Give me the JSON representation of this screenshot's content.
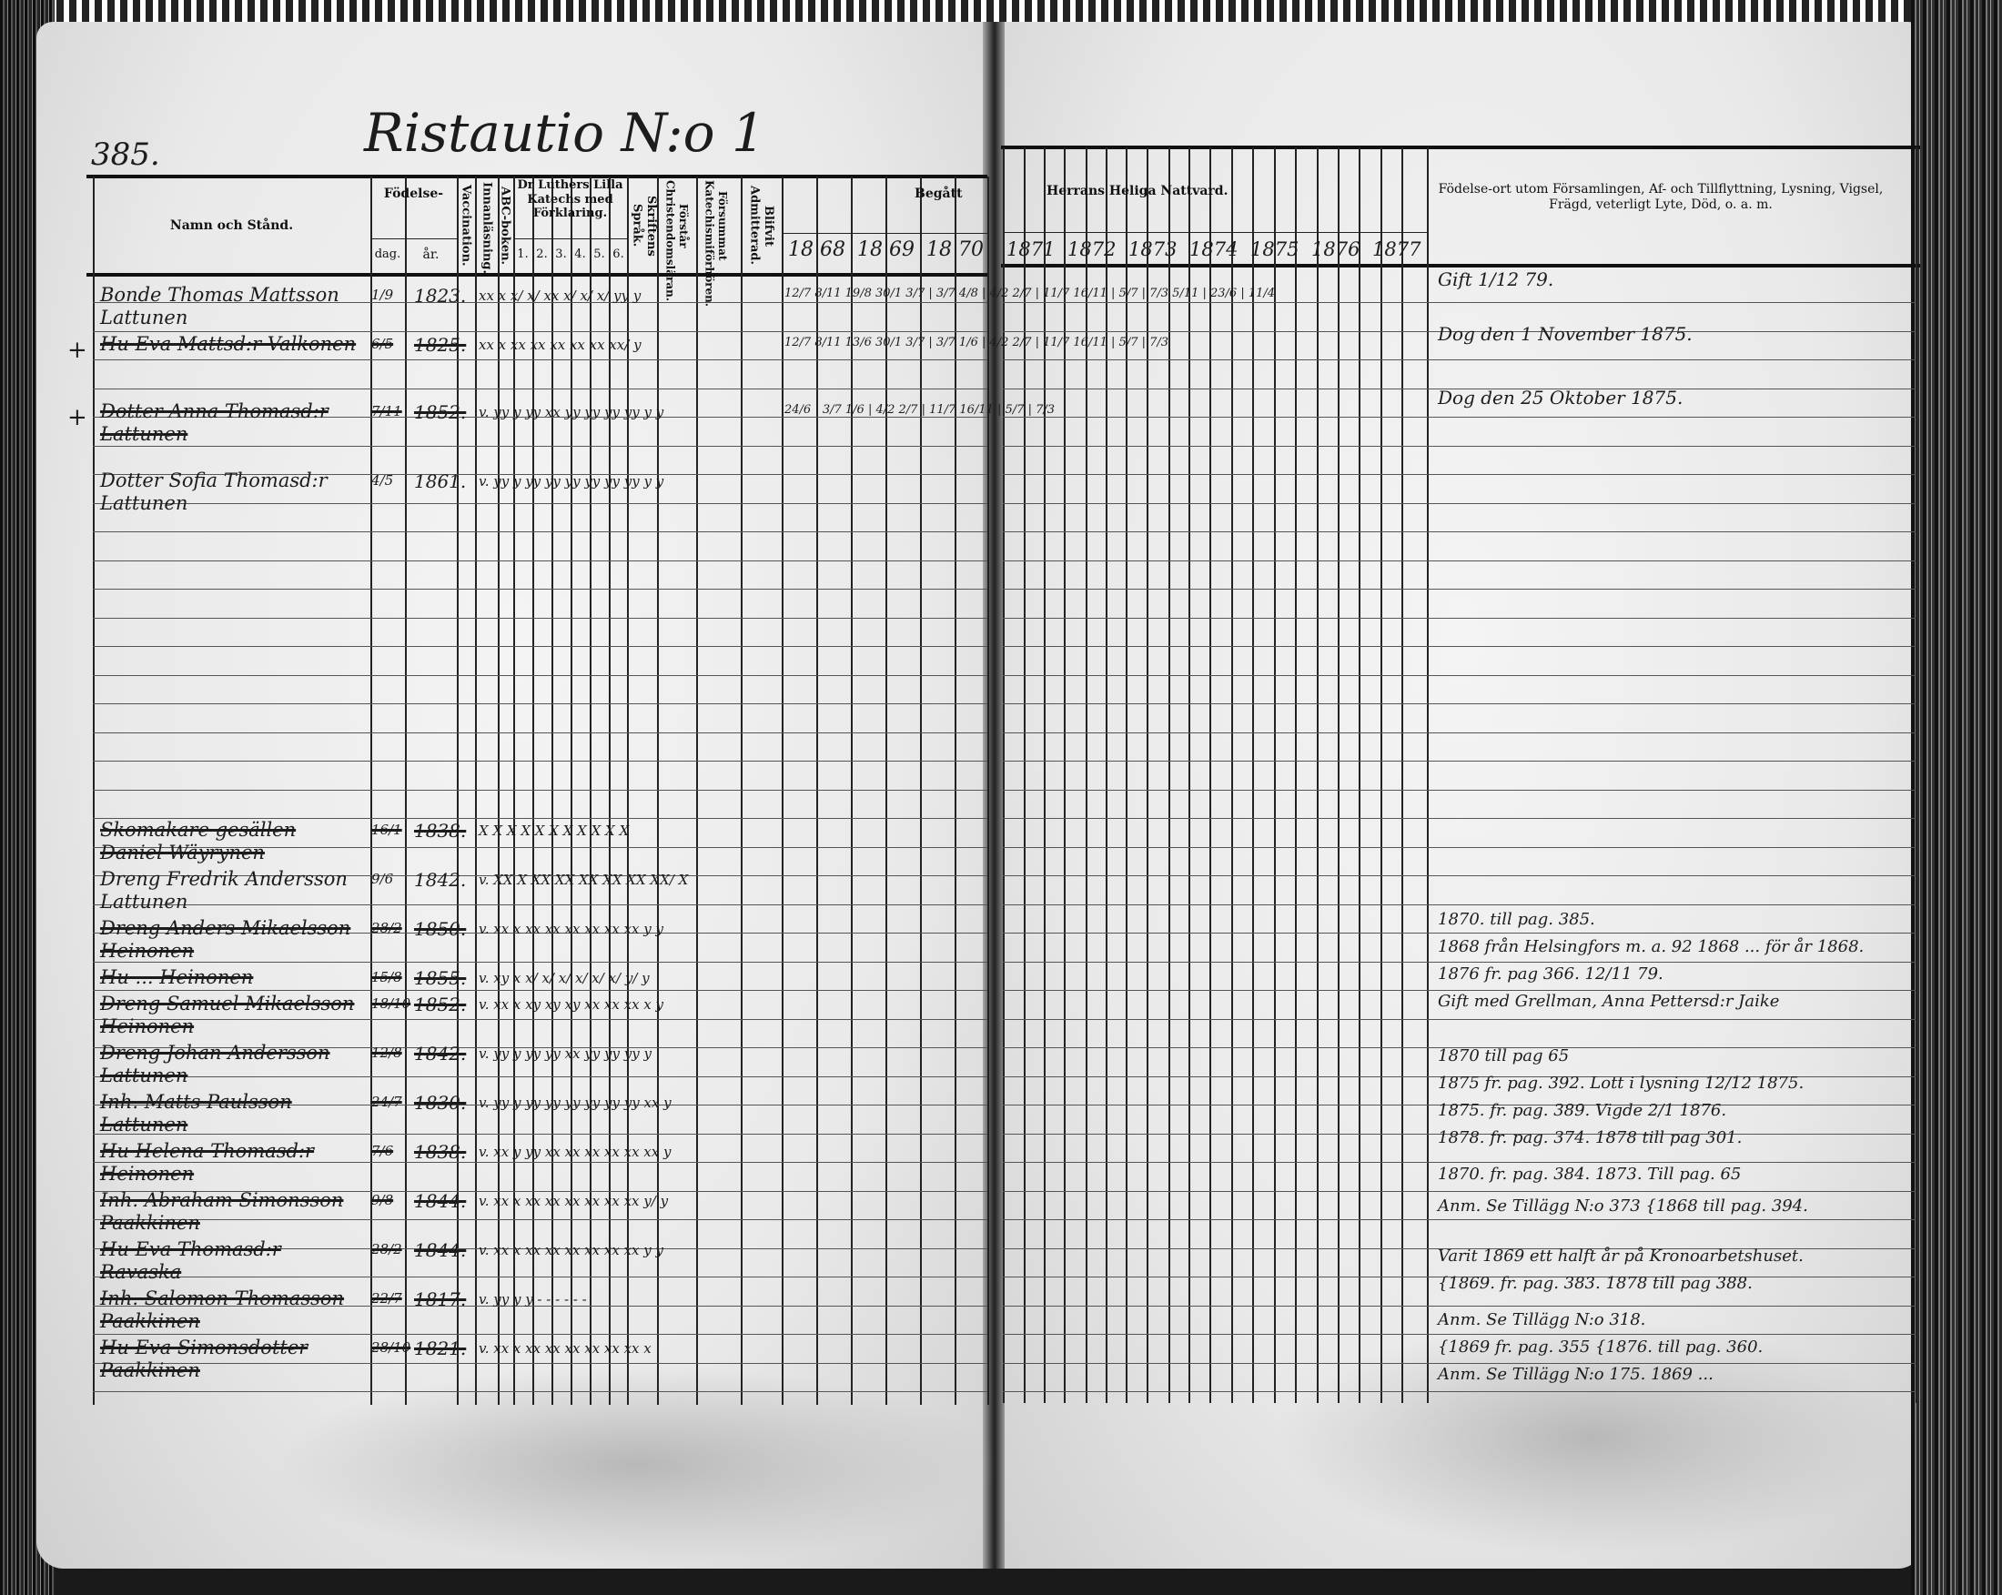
{
  "page_number": "385.",
  "title": "Ristautio N:o 1",
  "headers": {
    "name": "Namn och Stånd.",
    "birth": "Födelse-",
    "birth_day": "dag.",
    "birth_year": "år.",
    "vaccination": "Vaccination.",
    "reading": "Innanläsning.",
    "abc": "ABC-boken.",
    "catechism": "Dr Luthers Lilla Katechs med Förklaring.",
    "catechism_parts": [
      "1.",
      "2.",
      "3.",
      "4.",
      "5.",
      "6."
    ],
    "scripture": "Skriftens Språk.",
    "understands": "Förstår Christendomsläran.",
    "missed": "Försummat Katechismiförhören.",
    "admitted": "Blifvit Admitterad.",
    "communion_left": "Begått",
    "communion_right": "Herrans Heliga Nattvard.",
    "remarks": "Födelse-ort utom Församlingen, Af- och Tillflyttning, Lysning, Vigsel, Frägd, veterligt Lyte, Död, o. a. m.",
    "years_left": [
      "18 68",
      "18 69",
      "18 70"
    ],
    "years_right": [
      "1871",
      "1872",
      "1873",
      "1874",
      "1875",
      "1876",
      "1877"
    ]
  },
  "entries": [
    {
      "name": "Bonde Thomas Mattsson Lattunen",
      "day": "1/9",
      "year": "1823.",
      "marks": "xx x x/ x/ xx x/ x/ x/ yy  y",
      "struck": false,
      "cross": false
    },
    {
      "name": "Hu Eva Mattsd:r Valkonen",
      "day": "6/5",
      "year": "1825.",
      "marks": "xx x xx xx xx xx xx xx/  y",
      "struck": true,
      "cross": true
    },
    {
      "name": "Dotter Anna Thomasd:r Lattunen",
      "day": "7/11",
      "year": "1852.",
      "marks": "v. yy y yy xx yy yy yy yy y  y",
      "struck": true,
      "cross": true
    },
    {
      "name": "Dotter Sofia Thomasd:r Lattunen",
      "day": "4/5",
      "year": "1861.",
      "marks": "v. yy y yy yy yy yy yy yy y  y",
      "struck": false,
      "cross": false
    },
    {
      "name": "Skomakare gesällen Daniel Wäyrynen",
      "day": "16/1",
      "year": "1838.",
      "marks": "X X X X X X X X X X   X",
      "struck": true,
      "cross": false
    },
    {
      "name": "Dreng Fredrik Andersson Lattunen",
      "day": "9/6",
      "year": "1842.",
      "marks": "v. XX X XX XX XX XX XX XX/  X",
      "struck": false,
      "cross": false
    },
    {
      "name": "Dreng Anders Mikaelsson Heinonen",
      "day": "28/2",
      "year": "1850.",
      "marks": "v. xx x xx xx xx xx xx xx y  y",
      "struck": true,
      "cross": false
    },
    {
      "name": "Hu ... Heinonen",
      "day": "15/8",
      "year": "1855.",
      "marks": "v. xy x x/ x/ x/ x/ x/ x/ y/  y",
      "struck": true,
      "cross": false
    },
    {
      "name": "Dreng Samuel Mikaelsson Heinonen",
      "day": "18/10",
      "year": "1852.",
      "marks": "v. xx x xy xy xy xx xx xx x  y",
      "struck": true,
      "cross": false
    },
    {
      "name": "Dreng Johan Andersson Lattunen",
      "day": "12/8",
      "year": "1842.",
      "marks": "v. yy y yy yy xx yy yy yy y",
      "struck": true,
      "cross": false
    },
    {
      "name": "Inh. Matts Paulsson Lattunen",
      "day": "24/7",
      "year": "1830.",
      "marks": "v. yy y yy yy yy yy yy yy xx  y",
      "struck": true,
      "cross": false
    },
    {
      "name": "Hu Helena Thomasd:r Heinonen",
      "day": "7/6",
      "year": "1838.",
      "marks": "v. xx y yy xx xx xx xx xx xx  y",
      "struck": true,
      "cross": false
    },
    {
      "name": "Inh. Abraham Simonsson Paakkinen",
      "day": "9/8",
      "year": "1844.",
      "marks": "v. xx x xx xx xx xx xx xx y/  y",
      "struck": true,
      "cross": false
    },
    {
      "name": "Hu Eva Thomasd:r Ravaska",
      "day": "28/2",
      "year": "1844.",
      "marks": "v. xx x xx xx xx xx xx xx y  y",
      "struck": true,
      "cross": false
    },
    {
      "name": "Inh. Salomon Thomasson Paakkinen",
      "day": "22/7",
      "year": "1817.",
      "marks": "v. yy y y - - - - - -",
      "struck": true,
      "cross": false
    },
    {
      "name": "Hu Eva Simonsdotter Paakkinen",
      "day": "28/10",
      "year": "1821.",
      "marks": "v. xx x xx xx xx xx xx xx x",
      "struck": true,
      "cross": false
    }
  ],
  "communion_marks": [
    {
      "row": 0,
      "text": "12/7 8/11   19/8   30/1 3/7 | 3/7 4/8 | 4/2 2/7 | 11/7 16/11 | 5/7 | 7/3 5/11 | 23/6 | 11/4"
    },
    {
      "row": 1,
      "text": "12/7 8/11   13/6   30/1 3/7 | 3/7 1/6 | 4/2 2/7 | 11/7 16/11 | 5/7 | 7/3"
    },
    {
      "row": 2,
      "text": "24/6 | 3/7 1/6 | 4/2 2/7 | 11/7 16/11 | 5/7 | 7/3"
    }
  ],
  "notes": [
    "Gift 1/12 79.",
    "Dog den 1 November 1875.",
    "Dog den 25 Oktober 1875.",
    "1870. till pag. 385.",
    "1868 från Helsingfors m. a. 92 1868 ... för år 1868.",
    "1876 fr. pag 366. 12/11 79.",
    "Gift med Grellman, Anna Pettersd:r Jaike",
    "1870 till pag 65",
    "1875 fr. pag. 392. Lott i lysning 12/12 1875.",
    "1875. fr. pag. 389. Vigde 2/1 1876.",
    "1878. fr. pag. 374. 1878 till pag 301.",
    "1870. fr. pag. 384. 1873. Till pag. 65",
    "Anm. Se Tillägg N:o 373 {1868 till pag. 394.",
    "Varit 1869 ett halft år på Kronoarbetshuset.",
    "{1869. fr. pag. 383. 1878 till pag 388.",
    "Anm. Se Tillägg N:o 318.",
    "{1869 fr. pag. 355 {1876. till pag. 360.",
    "Anm. Se Tillägg N:o 175. 1869 ..."
  ],
  "margin_marks": {
    "cross": "+"
  }
}
